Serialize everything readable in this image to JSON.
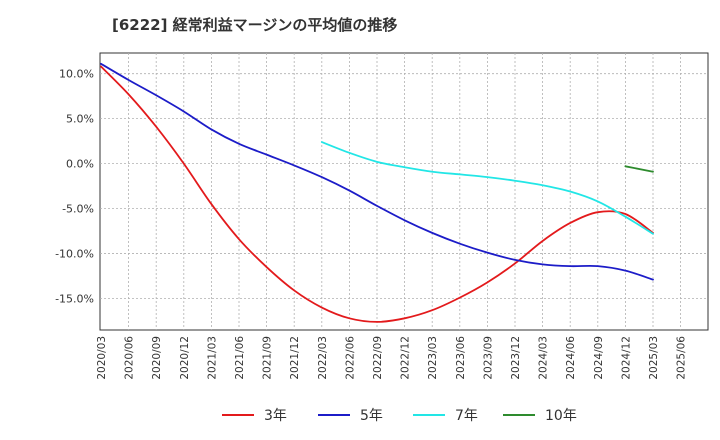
{
  "title": "[6222]  経常利益マージンの平均値の推移",
  "chart_data": {
    "type": "line",
    "title": "[6222]  経常利益マージンの平均値の推移",
    "xlabel": "",
    "ylabel": "",
    "y_ticks": [
      "10.0%",
      "5.0%",
      "0.0%",
      "-5.0%",
      "-10.0%",
      "-15.0%"
    ],
    "y_tick_values": [
      10,
      5,
      0,
      -5,
      -10,
      -15
    ],
    "ylim": [
      -18.5,
      12.3
    ],
    "x_ticks": [
      "2020/03",
      "2020/06",
      "2020/09",
      "2020/12",
      "2021/03",
      "2021/06",
      "2021/09",
      "2021/12",
      "2022/03",
      "2022/06",
      "2022/09",
      "2022/12",
      "2023/03",
      "2023/06",
      "2023/09",
      "2023/12",
      "2024/03",
      "2024/06",
      "2024/09",
      "2024/12",
      "2025/03",
      "2025/06"
    ],
    "grid": true,
    "legend_position": "bottom",
    "series": [
      {
        "name": "3年",
        "color": "#e31a1c",
        "x": [
          "2020/03",
          "2020/06",
          "2020/09",
          "2020/12",
          "2021/03",
          "2021/06",
          "2021/09",
          "2021/12",
          "2022/03",
          "2022/06",
          "2022/09",
          "2022/12",
          "2023/03",
          "2023/06",
          "2023/09",
          "2023/12",
          "2024/03",
          "2024/06",
          "2024/09",
          "2024/12",
          "2025/03"
        ],
        "values": [
          10.8,
          7.7,
          4.1,
          0.0,
          -4.5,
          -8.4,
          -11.5,
          -14.1,
          -16.0,
          -17.2,
          -17.6,
          -17.2,
          -16.3,
          -14.9,
          -13.2,
          -11.1,
          -8.6,
          -6.6,
          -5.4,
          -5.6,
          -7.7
        ]
      },
      {
        "name": "5年",
        "color": "#1c1cc8",
        "x": [
          "2020/03",
          "2020/06",
          "2020/09",
          "2020/12",
          "2021/03",
          "2021/06",
          "2021/09",
          "2021/12",
          "2022/03",
          "2022/06",
          "2022/09",
          "2022/12",
          "2023/03",
          "2023/06",
          "2023/09",
          "2023/12",
          "2024/03",
          "2024/06",
          "2024/09",
          "2024/12",
          "2025/03"
        ],
        "values": [
          11.1,
          9.3,
          7.6,
          5.8,
          3.8,
          2.2,
          1.0,
          -0.2,
          -1.5,
          -3.0,
          -4.7,
          -6.3,
          -7.7,
          -8.9,
          -9.9,
          -10.7,
          -11.2,
          -11.4,
          -11.4,
          -11.9,
          -12.9
        ]
      },
      {
        "name": "7年",
        "color": "#22e6e6",
        "x": [
          "2022/03",
          "2022/06",
          "2022/09",
          "2022/12",
          "2023/03",
          "2023/06",
          "2023/09",
          "2023/12",
          "2024/03",
          "2024/06",
          "2024/09",
          "2024/12",
          "2025/03"
        ],
        "values": [
          2.4,
          1.2,
          0.2,
          -0.4,
          -0.9,
          -1.2,
          -1.5,
          -1.9,
          -2.4,
          -3.1,
          -4.2,
          -5.9,
          -7.8
        ]
      },
      {
        "name": "10年",
        "color": "#2e8b2e",
        "x": [
          "2024/12",
          "2025/03"
        ],
        "values": [
          -0.3,
          -0.9
        ]
      }
    ]
  }
}
